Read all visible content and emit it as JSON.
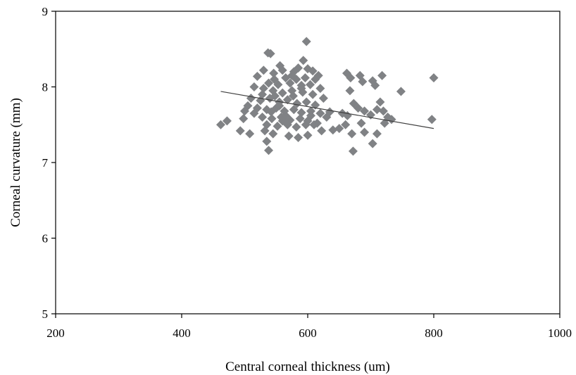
{
  "chart_data": {
    "type": "scatter",
    "title": "",
    "xlabel": "Central corneal thickness (um)",
    "ylabel": "Corneal curvature (mm)",
    "xlim": [
      200,
      1000
    ],
    "ylim": [
      5,
      9
    ],
    "x_ticks": [
      200,
      400,
      600,
      800,
      1000
    ],
    "y_ticks": [
      5,
      6,
      7,
      8,
      9
    ],
    "grid": false,
    "legend": "none",
    "marker": "diamond",
    "colors": {
      "marker": "#808285",
      "trendline": "#404040",
      "axis": "#000000"
    },
    "trendline": {
      "x": [
        462,
        800
      ],
      "y": [
        7.94,
        7.45
      ]
    },
    "points": [
      {
        "x": 598,
        "y": 8.6
      },
      {
        "x": 537,
        "y": 8.45
      },
      {
        "x": 541,
        "y": 8.44
      },
      {
        "x": 593,
        "y": 8.35
      },
      {
        "x": 530,
        "y": 8.22
      },
      {
        "x": 556,
        "y": 8.28
      },
      {
        "x": 560,
        "y": 8.22
      },
      {
        "x": 578,
        "y": 8.2
      },
      {
        "x": 585,
        "y": 8.25
      },
      {
        "x": 600,
        "y": 8.24
      },
      {
        "x": 608,
        "y": 8.21
      },
      {
        "x": 617,
        "y": 8.15
      },
      {
        "x": 520,
        "y": 8.14
      },
      {
        "x": 547,
        "y": 8.1
      },
      {
        "x": 565,
        "y": 8.12
      },
      {
        "x": 582,
        "y": 8.1
      },
      {
        "x": 596,
        "y": 8.12
      },
      {
        "x": 612,
        "y": 8.1
      },
      {
        "x": 538,
        "y": 8.05
      },
      {
        "x": 553,
        "y": 8.03
      },
      {
        "x": 572,
        "y": 8.05
      },
      {
        "x": 590,
        "y": 8.02
      },
      {
        "x": 604,
        "y": 8.03
      },
      {
        "x": 515,
        "y": 8.0
      },
      {
        "x": 530,
        "y": 7.98
      },
      {
        "x": 545,
        "y": 7.95
      },
      {
        "x": 560,
        "y": 7.92
      },
      {
        "x": 575,
        "y": 7.95
      },
      {
        "x": 592,
        "y": 7.93
      },
      {
        "x": 608,
        "y": 7.9
      },
      {
        "x": 625,
        "y": 7.85
      },
      {
        "x": 510,
        "y": 7.85
      },
      {
        "x": 525,
        "y": 7.82
      },
      {
        "x": 540,
        "y": 7.85
      },
      {
        "x": 555,
        "y": 7.8
      },
      {
        "x": 568,
        "y": 7.83
      },
      {
        "x": 583,
        "y": 7.78
      },
      {
        "x": 598,
        "y": 7.8
      },
      {
        "x": 612,
        "y": 7.76
      },
      {
        "x": 505,
        "y": 7.75
      },
      {
        "x": 520,
        "y": 7.72
      },
      {
        "x": 535,
        "y": 7.7
      },
      {
        "x": 550,
        "y": 7.72
      },
      {
        "x": 563,
        "y": 7.68
      },
      {
        "x": 578,
        "y": 7.7
      },
      {
        "x": 590,
        "y": 7.66
      },
      {
        "x": 605,
        "y": 7.68
      },
      {
        "x": 620,
        "y": 7.65
      },
      {
        "x": 630,
        "y": 7.6
      },
      {
        "x": 515,
        "y": 7.65
      },
      {
        "x": 528,
        "y": 7.6
      },
      {
        "x": 543,
        "y": 7.58
      },
      {
        "x": 558,
        "y": 7.6
      },
      {
        "x": 572,
        "y": 7.56
      },
      {
        "x": 588,
        "y": 7.58
      },
      {
        "x": 600,
        "y": 7.55
      },
      {
        "x": 615,
        "y": 7.52
      },
      {
        "x": 498,
        "y": 7.58
      },
      {
        "x": 535,
        "y": 7.5
      },
      {
        "x": 552,
        "y": 7.48
      },
      {
        "x": 568,
        "y": 7.5
      },
      {
        "x": 582,
        "y": 7.47
      },
      {
        "x": 597,
        "y": 7.5
      },
      {
        "x": 610,
        "y": 7.5
      },
      {
        "x": 462,
        "y": 7.5
      },
      {
        "x": 472,
        "y": 7.55
      },
      {
        "x": 493,
        "y": 7.42
      },
      {
        "x": 508,
        "y": 7.38
      },
      {
        "x": 532,
        "y": 7.42
      },
      {
        "x": 545,
        "y": 7.38
      },
      {
        "x": 570,
        "y": 7.35
      },
      {
        "x": 585,
        "y": 7.33
      },
      {
        "x": 600,
        "y": 7.36
      },
      {
        "x": 622,
        "y": 7.42
      },
      {
        "x": 640,
        "y": 7.43
      },
      {
        "x": 535,
        "y": 7.28
      },
      {
        "x": 538,
        "y": 7.16
      },
      {
        "x": 555,
        "y": 7.75
      },
      {
        "x": 565,
        "y": 7.62
      },
      {
        "x": 548,
        "y": 7.88
      },
      {
        "x": 575,
        "y": 8.15
      },
      {
        "x": 590,
        "y": 7.98
      },
      {
        "x": 620,
        "y": 7.98
      },
      {
        "x": 605,
        "y": 7.62
      },
      {
        "x": 500,
        "y": 7.68
      },
      {
        "x": 542,
        "y": 7.67
      },
      {
        "x": 560,
        "y": 7.55
      },
      {
        "x": 577,
        "y": 7.88
      },
      {
        "x": 528,
        "y": 7.9
      },
      {
        "x": 546,
        "y": 8.18
      },
      {
        "x": 662,
        "y": 8.18
      },
      {
        "x": 668,
        "y": 8.12
      },
      {
        "x": 683,
        "y": 8.15
      },
      {
        "x": 687,
        "y": 8.07
      },
      {
        "x": 703,
        "y": 8.08
      },
      {
        "x": 707,
        "y": 8.02
      },
      {
        "x": 718,
        "y": 8.15
      },
      {
        "x": 667,
        "y": 7.95
      },
      {
        "x": 655,
        "y": 7.65
      },
      {
        "x": 663,
        "y": 7.62
      },
      {
        "x": 673,
        "y": 7.78
      },
      {
        "x": 680,
        "y": 7.72
      },
      {
        "x": 690,
        "y": 7.68
      },
      {
        "x": 700,
        "y": 7.63
      },
      {
        "x": 710,
        "y": 7.7
      },
      {
        "x": 715,
        "y": 7.8
      },
      {
        "x": 720,
        "y": 7.68
      },
      {
        "x": 727,
        "y": 7.6
      },
      {
        "x": 733,
        "y": 7.57
      },
      {
        "x": 660,
        "y": 7.5
      },
      {
        "x": 685,
        "y": 7.52
      },
      {
        "x": 722,
        "y": 7.52
      },
      {
        "x": 670,
        "y": 7.38
      },
      {
        "x": 690,
        "y": 7.4
      },
      {
        "x": 710,
        "y": 7.38
      },
      {
        "x": 703,
        "y": 7.25
      },
      {
        "x": 672,
        "y": 7.15
      },
      {
        "x": 748,
        "y": 7.94
      },
      {
        "x": 800,
        "y": 8.12
      },
      {
        "x": 797,
        "y": 7.57
      },
      {
        "x": 635,
        "y": 7.67
      },
      {
        "x": 650,
        "y": 7.45
      }
    ]
  }
}
